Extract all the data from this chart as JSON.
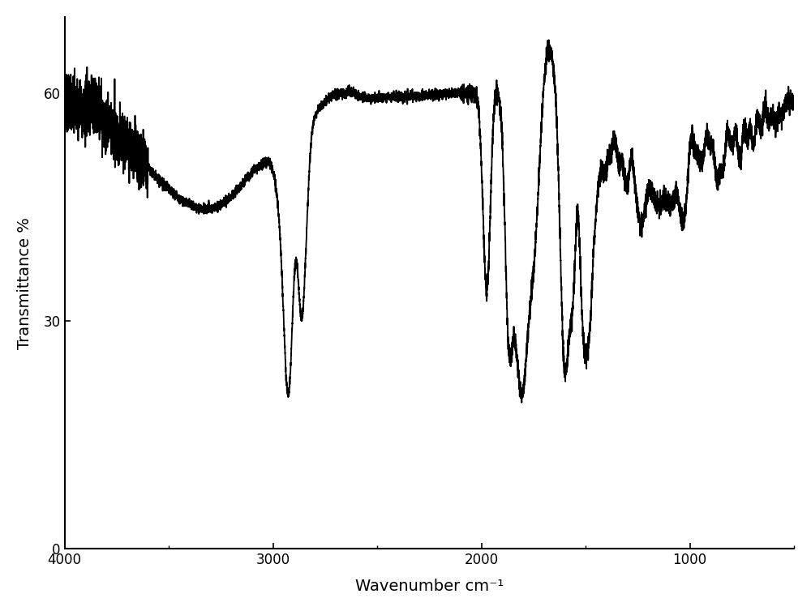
{
  "title": "",
  "xlabel": "Wavenumber cm⁻¹",
  "ylabel": "Transmittance %",
  "xlim": [
    4000,
    500
  ],
  "ylim": [
    0,
    70
  ],
  "yticks": [
    0,
    30,
    60
  ],
  "xticks": [
    4000,
    3000,
    2000,
    1000
  ],
  "background_color": "#ffffff",
  "line_color": "#000000",
  "line_width": 1.3,
  "figsize": [
    10.0,
    7.54
  ],
  "dpi": 100
}
